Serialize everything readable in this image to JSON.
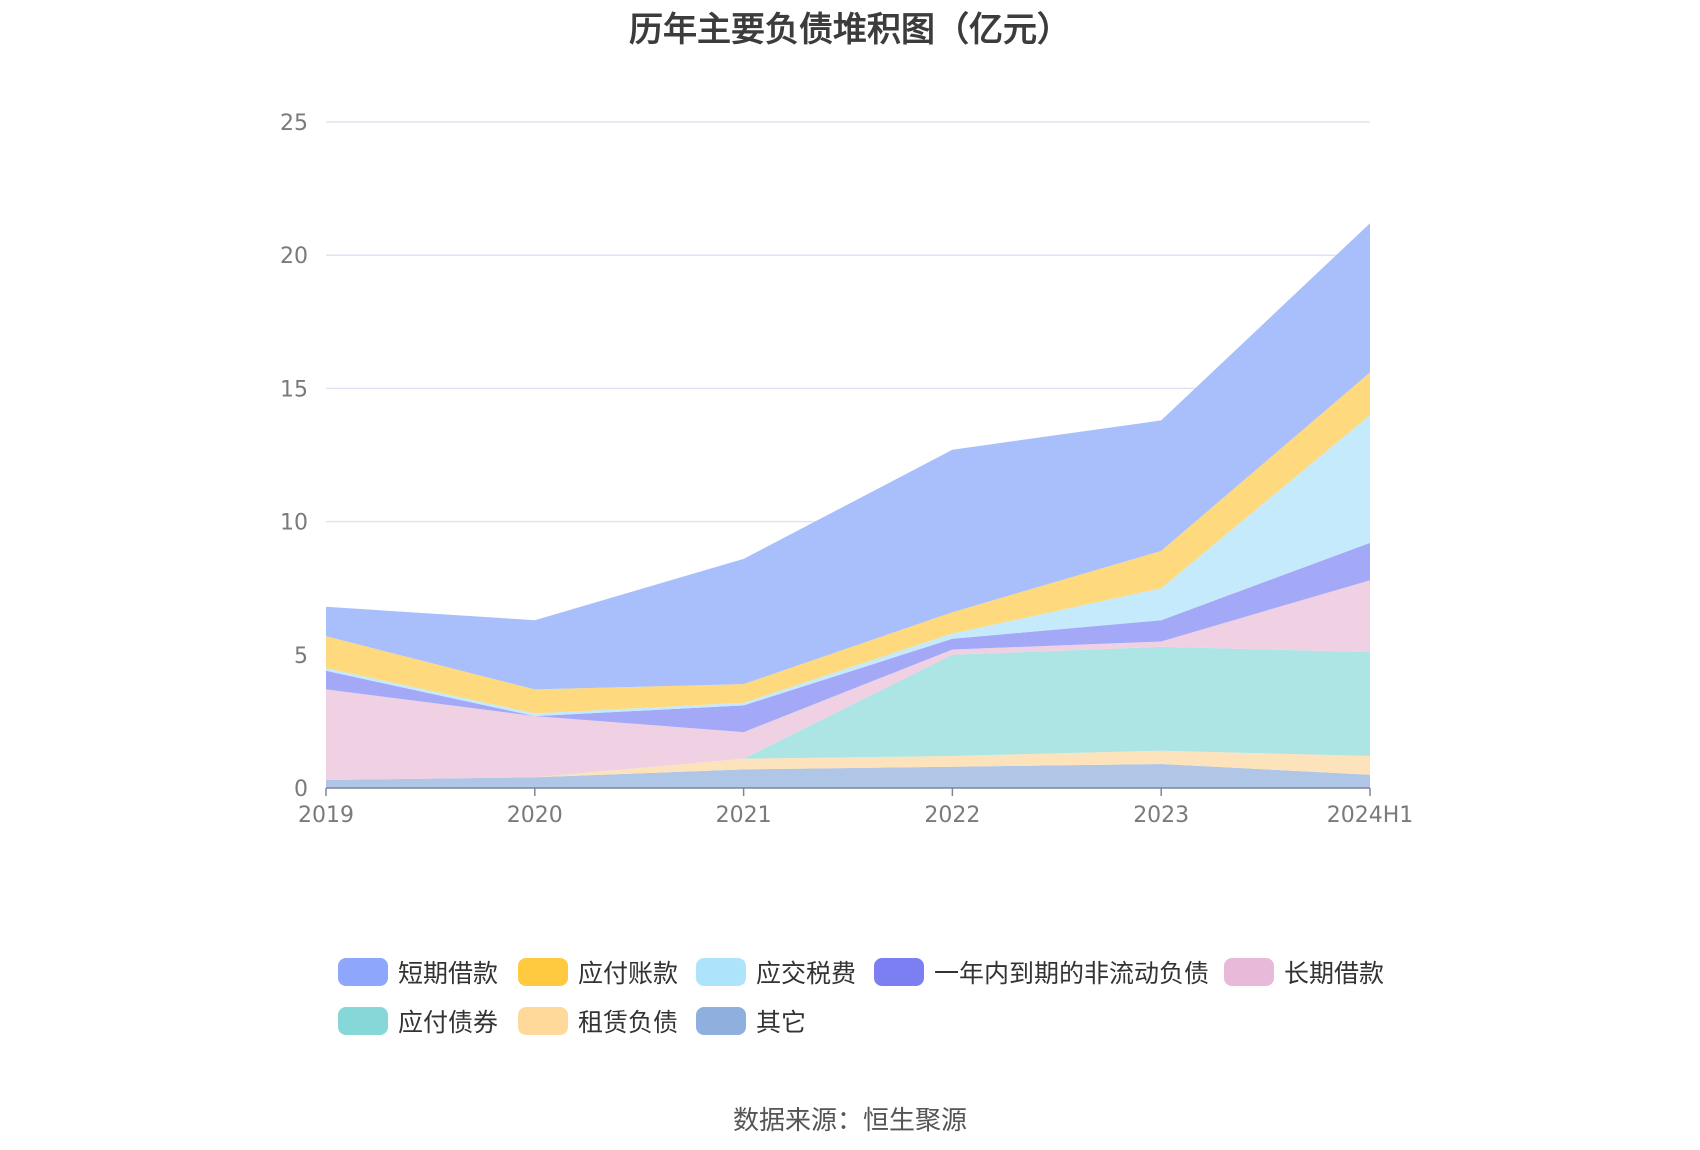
{
  "chart_data": {
    "type": "area",
    "stacked": true,
    "title": "历年主要负债堆积图（亿元）",
    "categories": [
      "2019",
      "2020",
      "2021",
      "2022",
      "2023",
      "2024H1"
    ],
    "ylim": [
      0,
      25
    ],
    "yticks": [
      0,
      5,
      10,
      15,
      20,
      25
    ],
    "grid": true,
    "legend_position": "bottom",
    "series": [
      {
        "name": "其它",
        "color": "#8fb0de",
        "fill": "#b0c6e6",
        "values": [
          0.3,
          0.4,
          0.7,
          0.8,
          0.9,
          0.5
        ]
      },
      {
        "name": "租赁负债",
        "color": "#ffd99a",
        "fill": "#fde3bb",
        "values": [
          0.0,
          0.0,
          0.4,
          0.4,
          0.5,
          0.7
        ]
      },
      {
        "name": "应付债券",
        "color": "#86d7d7",
        "fill": "#ade5e5",
        "values": [
          0.0,
          0.0,
          0.0,
          3.8,
          3.9,
          3.9
        ]
      },
      {
        "name": "长期借款",
        "color": "#e8b9d8",
        "fill": "#f0d0e3",
        "values": [
          3.4,
          2.3,
          1.0,
          0.2,
          0.2,
          2.7
        ]
      },
      {
        "name": "一年内到期的非流动负债",
        "color": "#7b7ff2",
        "fill": "#a3a8f7",
        "values": [
          0.7,
          0.0,
          1.0,
          0.4,
          0.8,
          1.4
        ]
      },
      {
        "name": "应交税费",
        "color": "#aee4fb",
        "fill": "#c4eafb",
        "values": [
          0.1,
          0.1,
          0.1,
          0.2,
          1.2,
          4.8
        ]
      },
      {
        "name": "应付账款",
        "color": "#ffc940",
        "fill": "#ffd97d",
        "values": [
          1.2,
          0.9,
          0.7,
          0.8,
          1.4,
          1.6
        ]
      },
      {
        "name": "短期借款",
        "color": "#8ea6fb",
        "fill": "#a9bffc",
        "values": [
          1.1,
          2.6,
          4.7,
          6.1,
          4.9,
          5.6
        ]
      }
    ],
    "legend_order": [
      "短期借款",
      "应付账款",
      "应交税费",
      "一年内到期的非流动负债",
      "长期借款",
      "应付债券",
      "租赁负债",
      "其它"
    ]
  },
  "source": "数据来源：恒生聚源"
}
